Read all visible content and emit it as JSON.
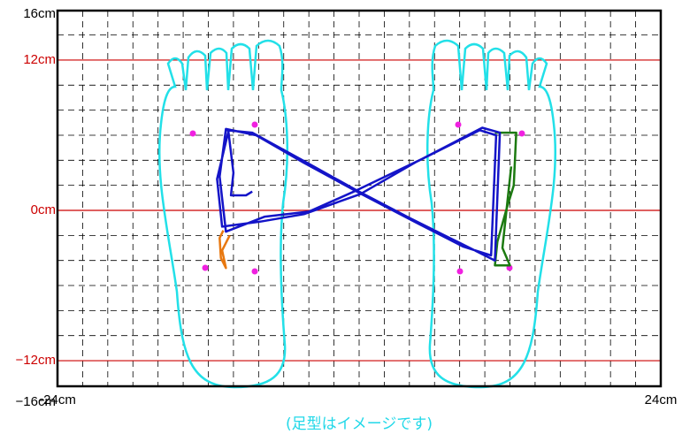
{
  "chart_data": {
    "type": "line",
    "caption": "(足型はイメージです)",
    "xlim": [
      -24,
      24
    ],
    "ylim": [
      -16,
      16
    ],
    "xticks": [
      {
        "value": -24,
        "label": "-24cm"
      },
      {
        "value": 24,
        "label": "24cm"
      }
    ],
    "yticks": [
      {
        "value": 16,
        "label": "16cm"
      },
      {
        "value": 12,
        "label": "12cm"
      },
      {
        "value": 0,
        "label": "0cm"
      },
      {
        "value": -12,
        "label": "−12cm"
      },
      {
        "value": -16,
        "label": "−16cm"
      }
    ],
    "grid": true,
    "grid_step": 2,
    "reference_lines": [
      12,
      0,
      -12
    ],
    "reference_color": "#cc0000",
    "series": [
      {
        "color": "#e87810",
        "x": [
          -10.8,
          -11.1,
          -11.0,
          -10.6,
          -10.9,
          -10.3
        ],
        "y": [
          -1.6,
          -2.2,
          -3.8,
          -4.6,
          -3.2,
          -2.0
        ]
      },
      {
        "color": "#1c7a10",
        "x": [
          10.8,
          12.5,
          12.3,
          11.7,
          11.0,
          10.8,
          12.0,
          11.4,
          12.1
        ],
        "y": [
          6.2,
          6.2,
          2.0,
          0.0,
          -2.5,
          -4.4,
          -4.4,
          -3.0,
          3.5
        ]
      },
      {
        "color": "#1414c8",
        "x": [
          -10.6,
          -8.5,
          -4.5,
          -0.2,
          4.0,
          8.0,
          10.8,
          11.2,
          9.8,
          5.0,
          -0.2,
          -4.0,
          -7.5,
          -10.6,
          -11.1,
          -10.6,
          -8.2,
          -4.4,
          0.2,
          4.4,
          8.3,
          10.5,
          10.9,
          9.6,
          4.6,
          0.1,
          -4.4,
          -7.9,
          -10.9,
          -11.3,
          -10.4,
          -10.0,
          -10.2,
          -9.0,
          -8.5
        ],
        "y": [
          6.4,
          6.2,
          4.0,
          1.6,
          -0.6,
          -2.6,
          -4.0,
          6.2,
          6.6,
          4.1,
          1.6,
          -0.1,
          -0.5,
          -1.7,
          2.7,
          6.5,
          6.0,
          3.8,
          1.3,
          -0.9,
          -2.9,
          -3.6,
          6.0,
          6.4,
          3.9,
          1.3,
          -0.3,
          -0.9,
          -1.3,
          2.5,
          6.3,
          3.0,
          1.2,
          1.2,
          1.5
        ]
      }
    ]
  }
}
